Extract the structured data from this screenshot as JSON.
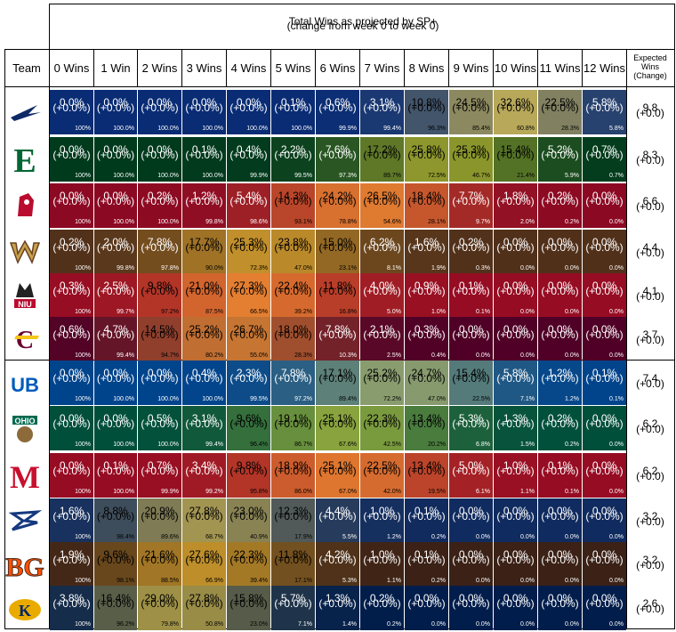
{
  "chart_data": {
    "type": "table",
    "title": "Total Wins as projected by SP+",
    "subtitle": "(change from week 0 to week 0)",
    "team_header": "Team",
    "columns": [
      "0 Wins",
      "1 Win",
      "2 Wins",
      "3 Wins",
      "4 Wins",
      "5 Wins",
      "6 Wins",
      "7 Wins",
      "8 Wins",
      "9 Wins",
      "10 Wins",
      "11 Wins",
      "12 Wins"
    ],
    "expected_header": [
      "Expected",
      "Wins",
      "(Change)"
    ],
    "change_label": "(+0.0%)",
    "expected_change_label": "(+0.0)",
    "teams": [
      {
        "name": "Akron",
        "logo": "akron-logo-icon",
        "logo_color": "#0e2a66",
        "color": "#0c3a9b",
        "pct": [
          "0.0%",
          "0.0%",
          "0.0%",
          "0.0%",
          "0.0%",
          "0.1%",
          "0.6%",
          "3.1%",
          "10.8%",
          "24.5%",
          "32.6%",
          "22.5%",
          "5.8%"
        ],
        "cum": [
          "100%",
          "100.0%",
          "100.0%",
          "100.0%",
          "100.0%",
          "100.0%",
          "99.9%",
          "99.4%",
          "96.3%",
          "85.4%",
          "60.8%",
          "28.3%",
          "5.8%"
        ],
        "expected": "9.8"
      },
      {
        "name": "Eastern Michigan",
        "logo": "eastern-michigan-logo-icon",
        "logo_color": "#006633",
        "color": "#004d26",
        "pct": [
          "0.0%",
          "0.0%",
          "0.0%",
          "0.1%",
          "0.4%",
          "2.2%",
          "7.6%",
          "17.2%",
          "25.8%",
          "25.3%",
          "15.4%",
          "5.2%",
          "0.7%"
        ],
        "cum": [
          "100%",
          "100.0%",
          "100.0%",
          "100.0%",
          "99.9%",
          "99.5%",
          "97.3%",
          "89.7%",
          "72.5%",
          "46.7%",
          "21.4%",
          "5.9%",
          "0.7%"
        ],
        "expected": "8.3"
      },
      {
        "name": "Ball State",
        "logo": "ball-state-logo-icon",
        "logo_color": "#ba0c2f",
        "color": "#ba0c2f",
        "pct": [
          "0.0%",
          "0.0%",
          "0.2%",
          "1.2%",
          "5.4%",
          "14.3%",
          "24.2%",
          "26.5%",
          "18.4%",
          "7.7%",
          "1.8%",
          "0.2%",
          "0.0%"
        ],
        "cum": [
          "100%",
          "100.0%",
          "100.0%",
          "99.8%",
          "98.6%",
          "93.1%",
          "78.8%",
          "54.6%",
          "28.1%",
          "9.7%",
          "2.0%",
          "0.2%",
          "0.0%"
        ],
        "expected": "6.6"
      },
      {
        "name": "Western Michigan",
        "logo": "western-michigan-logo-icon",
        "logo_color": "#6c4023",
        "color": "#6c4023",
        "pct": [
          "0.2%",
          "2.0%",
          "7.8%",
          "17.7%",
          "25.3%",
          "23.8%",
          "15.0%",
          "6.2%",
          "1.6%",
          "0.2%",
          "0.0%",
          "0.0%",
          "0.0%"
        ],
        "cum": [
          "100%",
          "99.8%",
          "97.8%",
          "90.0%",
          "72.3%",
          "47.0%",
          "23.1%",
          "8.1%",
          "1.9%",
          "0.3%",
          "0.0%",
          "0.0%",
          "0.0%"
        ],
        "expected": "4.4"
      },
      {
        "name": "Northern Illinois",
        "logo": "niu-logo-icon",
        "logo_color": "#ba0c2f",
        "color": "#c8102e",
        "pct": [
          "0.3%",
          "2.5%",
          "9.8%",
          "21.0%",
          "27.3%",
          "22.4%",
          "11.8%",
          "4.0%",
          "0.9%",
          "0.1%",
          "0.0%",
          "0.0%",
          "0.0%"
        ],
        "cum": [
          "100%",
          "99.7%",
          "97.2%",
          "87.5%",
          "66.5%",
          "39.2%",
          "16.8%",
          "5.0%",
          "1.0%",
          "0.1%",
          "0.0%",
          "0.0%",
          "0.0%"
        ],
        "expected": "4.1"
      },
      {
        "name": "Central Michigan",
        "logo": "central-michigan-logo-icon",
        "logo_color": "#6a0032",
        "color": "#6a0032",
        "pct": [
          "0.6%",
          "4.7%",
          "14.5%",
          "25.2%",
          "26.7%",
          "18.0%",
          "7.8%",
          "2.1%",
          "0.3%",
          "0.0%",
          "0.0%",
          "0.0%",
          "0.0%"
        ],
        "cum": [
          "100%",
          "99.4%",
          "94.7%",
          "80.2%",
          "55.0%",
          "28.3%",
          "10.3%",
          "2.5%",
          "0.4%",
          "0.0%",
          "0.0%",
          "0.0%",
          "0.0%"
        ],
        "expected": "3.7"
      },
      {
        "name": "Buffalo",
        "logo": "buffalo-logo-icon",
        "logo_color": "#005bbb",
        "color": "#005bbb",
        "pct": [
          "0.0%",
          "0.0%",
          "0.0%",
          "0.4%",
          "2.3%",
          "7.8%",
          "17.1%",
          "25.2%",
          "24.7%",
          "15.4%",
          "5.8%",
          "1.2%",
          "0.1%"
        ],
        "cum": [
          "100%",
          "100.0%",
          "100.0%",
          "100.0%",
          "99.5%",
          "97.2%",
          "89.4%",
          "72.2%",
          "47.0%",
          "22.5%",
          "7.1%",
          "1.2%",
          "0.1%"
        ],
        "expected": "7.4"
      },
      {
        "name": "Ohio",
        "logo": "ohio-logo-icon",
        "logo_color": "#00694e",
        "color": "#00694e",
        "pct": [
          "0.0%",
          "0.0%",
          "0.5%",
          "3.1%",
          "9.6%",
          "19.1%",
          "25.1%",
          "22.3%",
          "13.4%",
          "5.3%",
          "1.3%",
          "0.2%",
          "0.0%"
        ],
        "cum": [
          "100%",
          "100.0%",
          "100.0%",
          "99.4%",
          "96.4%",
          "86.7%",
          "67.6%",
          "42.5%",
          "20.2%",
          "6.8%",
          "1.5%",
          "0.2%",
          "0.0%"
        ],
        "expected": "6.2"
      },
      {
        "name": "Miami (OH)",
        "logo": "miami-oh-logo-icon",
        "logo_color": "#c8102e",
        "color": "#c8102e",
        "pct": [
          "0.0%",
          "0.1%",
          "0.7%",
          "3.4%",
          "9.8%",
          "18.9%",
          "25.1%",
          "22.5%",
          "13.4%",
          "5.0%",
          "1.0%",
          "0.1%",
          "0.0%"
        ],
        "cum": [
          "100%",
          "100.0%",
          "99.9%",
          "99.2%",
          "95.8%",
          "86.0%",
          "67.0%",
          "42.0%",
          "19.5%",
          "6.1%",
          "1.1%",
          "0.1%",
          "0.0%"
        ],
        "expected": "6.2"
      },
      {
        "name": "Toledo",
        "logo": "toledo-logo-icon",
        "logo_color": "#15397f",
        "color": "#15397f",
        "pct": [
          "1.6%",
          "8.8%",
          "20.9%",
          "27.8%",
          "23.0%",
          "12.3%",
          "4.4%",
          "1.0%",
          "0.1%",
          "0.0%",
          "0.0%",
          "0.0%",
          "0.0%"
        ],
        "cum": [
          "100%",
          "98.4%",
          "89.6%",
          "68.7%",
          "40.9%",
          "17.9%",
          "5.5%",
          "1.2%",
          "0.2%",
          "0.0%",
          "0.0%",
          "0.0%",
          "0.0%"
        ],
        "expected": "3.2"
      },
      {
        "name": "Bowling Green",
        "logo": "bowling-green-logo-icon",
        "logo_color": "#fe5000",
        "color": "#4f2c1d",
        "pct": [
          "1.9%",
          "9.6%",
          "21.6%",
          "27.6%",
          "22.3%",
          "11.8%",
          "4.2%",
          "1.0%",
          "0.1%",
          "0.0%",
          "0.0%",
          "0.0%",
          "0.0%"
        ],
        "cum": [
          "100%",
          "98.1%",
          "88.5%",
          "66.9%",
          "39.4%",
          "17.1%",
          "5.3%",
          "1.1%",
          "0.2%",
          "0.0%",
          "0.0%",
          "0.0%",
          "0.0%"
        ],
        "expected": "3.2"
      },
      {
        "name": "Kent State",
        "logo": "kent-state-logo-icon",
        "logo_color": "#002664",
        "color": "#002664",
        "pct": [
          "3.8%",
          "16.4%",
          "29.0%",
          "27.8%",
          "15.8%",
          "5.7%",
          "1.3%",
          "0.2%",
          "0.0%",
          "0.0%",
          "0.0%",
          "0.0%",
          "0.0%"
        ],
        "cum": [
          "100%",
          "96.2%",
          "79.8%",
          "50.8%",
          "23.0%",
          "7.1%",
          "1.4%",
          "0.2%",
          "0.0%",
          "0.0%",
          "0.0%",
          "0.0%",
          "0.0%"
        ],
        "expected": "2.6"
      }
    ]
  }
}
